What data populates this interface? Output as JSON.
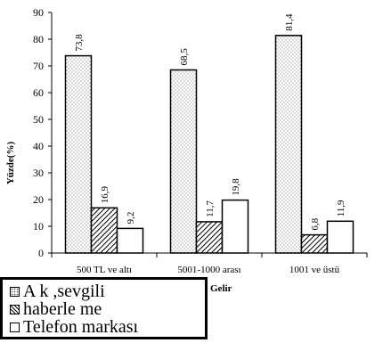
{
  "chart_data": {
    "type": "bar",
    "categories": [
      "500 TL ve altı",
      "5001-1000  arası",
      "1001 ve üstü"
    ],
    "series": [
      {
        "name": "A k ,sevgili",
        "values": [
          73.8,
          68.5,
          81.4
        ],
        "labels": [
          "73,8",
          "68,5",
          "81,4"
        ],
        "pattern": "dots"
      },
      {
        "name": "haberle me",
        "values": [
          16.9,
          11.7,
          6.8
        ],
        "labels": [
          "16,9",
          "11,7",
          "6,8"
        ],
        "pattern": "hatch"
      },
      {
        "name": "Telefon markası",
        "values": [
          9.2,
          19.8,
          11.9
        ],
        "labels": [
          "9,2",
          "19,8",
          "11,9"
        ],
        "pattern": "white"
      }
    ],
    "xlabel": "Gelir",
    "ylabel": "Yüzde(%)",
    "ylim": [
      0,
      90
    ],
    "yticks": [
      "0",
      "10",
      "20",
      "30",
      "40",
      "50",
      "60",
      "70",
      "80",
      "90"
    ],
    "grid": false,
    "legend_position": "bottom-left"
  },
  "colors": {
    "bar_outline": "#000000",
    "background": "#ffffff"
  }
}
